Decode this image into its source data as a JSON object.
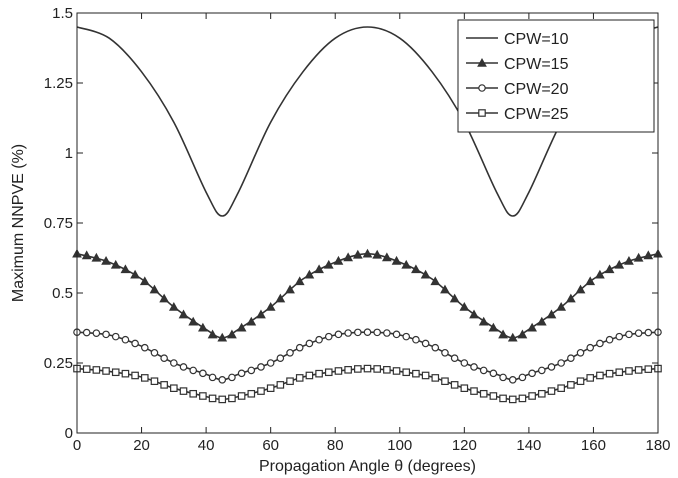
{
  "chart_data": {
    "type": "line",
    "xlabel": "Propagation Angle θ (degrees)",
    "ylabel": "Maximum NNPVE (%)",
    "xlim": [
      0,
      180
    ],
    "ylim": [
      0,
      1.5
    ],
    "x_ticks": [
      0,
      20,
      40,
      60,
      80,
      100,
      120,
      140,
      160,
      180
    ],
    "x_tick_labels": [
      "0",
      "20",
      "40",
      "60",
      "80",
      "100",
      "120",
      "140",
      "160",
      "180"
    ],
    "y_ticks": [
      0,
      0.25,
      0.5,
      0.75,
      1,
      1.25,
      1.5
    ],
    "y_tick_labels": [
      "0",
      "0.25",
      "0.5",
      "0.75",
      "1",
      "1.25",
      "1.5"
    ],
    "grid": false,
    "legend_position": "top-right",
    "line_color": "#333333",
    "x": [
      0,
      10,
      20,
      30,
      40,
      45,
      50,
      60,
      70,
      80,
      90,
      100,
      110,
      120,
      130,
      135,
      140,
      150,
      160,
      170,
      180
    ],
    "series": [
      {
        "name": "CPW=10",
        "marker": "none",
        "values": [
          1.45,
          1.41,
          1.29,
          1.11,
          0.86,
          0.775,
          0.86,
          1.11,
          1.29,
          1.41,
          1.45,
          1.41,
          1.29,
          1.11,
          0.86,
          0.775,
          0.86,
          1.11,
          1.29,
          1.41,
          1.45
        ]
      },
      {
        "name": "CPW=15",
        "marker": "triangle",
        "values": [
          0.64,
          0.61,
          0.55,
          0.45,
          0.37,
          0.34,
          0.37,
          0.45,
          0.55,
          0.61,
          0.64,
          0.61,
          0.55,
          0.45,
          0.37,
          0.34,
          0.37,
          0.45,
          0.55,
          0.61,
          0.64
        ]
      },
      {
        "name": "CPW=20",
        "marker": "circle",
        "values": [
          0.36,
          0.35,
          0.31,
          0.25,
          0.21,
          0.19,
          0.21,
          0.25,
          0.31,
          0.35,
          0.36,
          0.35,
          0.31,
          0.25,
          0.21,
          0.19,
          0.21,
          0.25,
          0.31,
          0.35,
          0.36
        ]
      },
      {
        "name": "CPW=25",
        "marker": "square",
        "values": [
          0.23,
          0.22,
          0.2,
          0.16,
          0.13,
          0.12,
          0.13,
          0.16,
          0.2,
          0.22,
          0.23,
          0.22,
          0.2,
          0.16,
          0.13,
          0.12,
          0.13,
          0.16,
          0.2,
          0.22,
          0.23
        ]
      }
    ]
  }
}
